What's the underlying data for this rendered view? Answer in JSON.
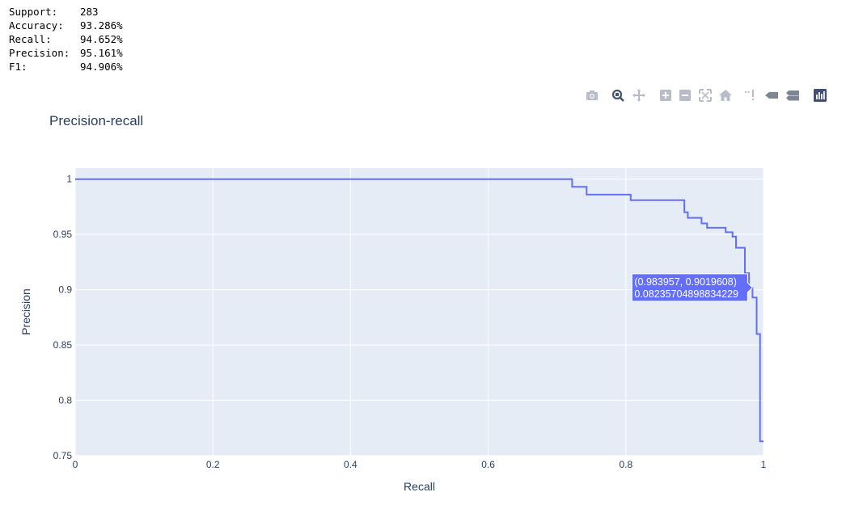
{
  "metrics": [
    {
      "label": "Support:",
      "value": "283"
    },
    {
      "label": "Accuracy:",
      "value": "93.286%"
    },
    {
      "label": "Recall:",
      "value": "94.652%"
    },
    {
      "label": "Precision:",
      "value": "95.161%"
    },
    {
      "label": "F1:",
      "value": "94.906%"
    }
  ],
  "modebar": {
    "icons": [
      "camera-icon",
      "zoom-icon",
      "pan-icon",
      "zoom-in-icon",
      "zoom-out-icon",
      "autoscale-icon",
      "reset-axes-icon",
      "spike-lines-icon",
      "hover-closest-icon",
      "hover-compare-icon",
      "plotly-logo-icon"
    ]
  },
  "chart_data": {
    "type": "line",
    "line_shape": "step",
    "title": "Precision-recall",
    "xlabel": "Recall",
    "ylabel": "Precision",
    "xlim": [
      0,
      1
    ],
    "ylim": [
      0.75,
      1.01
    ],
    "xticks": [
      0,
      0.2,
      0.4,
      0.6,
      0.8,
      1
    ],
    "xtick_labels": [
      "0",
      "0.2",
      "0.4",
      "0.6",
      "0.8",
      "1"
    ],
    "yticks": [
      0.75,
      0.8,
      0.85,
      0.9,
      0.95,
      1
    ],
    "ytick_labels": [
      "0.75",
      "0.8",
      "0.85",
      "0.9",
      "0.95",
      "1"
    ],
    "grid": true,
    "colors": {
      "line": "#636efa",
      "plot_bg": "#e5ecf6",
      "grid": "#ffffff",
      "axis_text": "#2a3f5f"
    },
    "series": [
      {
        "x": [
          0,
          0.722,
          0.722,
          0.743,
          0.743,
          0.807,
          0.807,
          0.885,
          0.885,
          0.89,
          0.89,
          0.91,
          0.91,
          0.918,
          0.918,
          0.945,
          0.945,
          0.955,
          0.955,
          0.96,
          0.96,
          0.973,
          0.973,
          0.979,
          0.979,
          0.984,
          0.984,
          0.99,
          0.99,
          0.995,
          0.995,
          1.0
        ],
        "y": [
          1.0,
          1.0,
          0.993,
          0.993,
          0.986,
          0.986,
          0.981,
          0.981,
          0.97,
          0.97,
          0.965,
          0.965,
          0.96,
          0.96,
          0.956,
          0.956,
          0.952,
          0.952,
          0.948,
          0.948,
          0.938,
          0.938,
          0.915,
          0.915,
          0.902,
          0.902,
          0.893,
          0.893,
          0.86,
          0.86,
          0.763,
          0.763
        ]
      }
    ],
    "hover": {
      "line1": "(0.983957, 0.9019608)",
      "line2": "0.08235704898834229",
      "x": 0.984,
      "y": 0.902
    }
  }
}
